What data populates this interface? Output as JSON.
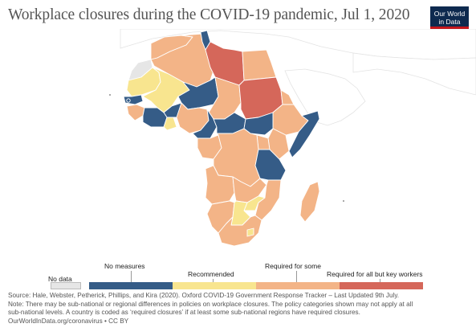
{
  "header": {
    "title": "Workplace closures during the COVID-19 pandemic, Jul 1, 2020"
  },
  "logo": {
    "line1": "Our World",
    "line2": "in Data"
  },
  "colors": {
    "no_data": "#e6e6e6",
    "no_measures": "#355c87",
    "recommended": "#f8e58f",
    "required_for_some": "#f3b487",
    "required_for_all_but_key_workers": "#d5675a",
    "ocean": "#ffffff",
    "border": "#ffffff",
    "outside_land": "#f2f2f2"
  },
  "legend": {
    "no_data_label": "No data",
    "categories": [
      {
        "label": "No measures",
        "color": "#355c87"
      },
      {
        "label": "Recommended",
        "color": "#f8e58f"
      },
      {
        "label": "Required for some",
        "color": "#f3b487"
      },
      {
        "label": "Required for all but key workers",
        "color": "#d5675a"
      }
    ]
  },
  "regions": [
    {
      "name": "Morocco",
      "category": "required_for_some"
    },
    {
      "name": "Western Sahara",
      "category": "no_data"
    },
    {
      "name": "Algeria",
      "category": "required_for_some"
    },
    {
      "name": "Tunisia",
      "category": "no_measures"
    },
    {
      "name": "Libya",
      "category": "required_for_all_but_key_workers"
    },
    {
      "name": "Egypt",
      "category": "required_for_some"
    },
    {
      "name": "Mauritania",
      "category": "recommended"
    },
    {
      "name": "Mali",
      "category": "recommended"
    },
    {
      "name": "Niger",
      "category": "no_measures"
    },
    {
      "name": "Chad",
      "category": "required_for_some"
    },
    {
      "name": "Sudan",
      "category": "required_for_all_but_key_workers"
    },
    {
      "name": "Senegal",
      "category": "no_measures"
    },
    {
      "name": "Burkina Faso",
      "category": "no_measures"
    },
    {
      "name": "Nigeria",
      "category": "required_for_some"
    },
    {
      "name": "Ethiopia",
      "category": "required_for_some"
    },
    {
      "name": "Somalia",
      "category": "no_measures"
    },
    {
      "name": "Cameroon",
      "category": "no_measures"
    },
    {
      "name": "Central African Republic",
      "category": "no_measures"
    },
    {
      "name": "South Sudan",
      "category": "no_measures"
    },
    {
      "name": "DR Congo",
      "category": "required_for_some"
    },
    {
      "name": "Tanzania",
      "category": "no_measures"
    },
    {
      "name": "Angola",
      "category": "required_for_some"
    },
    {
      "name": "Zambia",
      "category": "required_for_some"
    },
    {
      "name": "Botswana",
      "category": "recommended"
    },
    {
      "name": "South Africa",
      "category": "required_for_some"
    },
    {
      "name": "Madagascar",
      "category": "required_for_some"
    }
  ],
  "footer": {
    "line1": "Source: Hale, Webster, Petherick, Phillips, and Kira (2020). Oxford COVID-19 Government Response Tracker – Last Updated 9th July.",
    "line2": "Note: There may be sub-national or regional differences in policies on workplace closures. The policy categories shown may not apply at all",
    "line3": "sub-national levels. A country is coded as ‘required closures’ if at least some sub-national regions have required closures.",
    "line4": "OurWorldInData.org/coronavirus • CC BY"
  }
}
